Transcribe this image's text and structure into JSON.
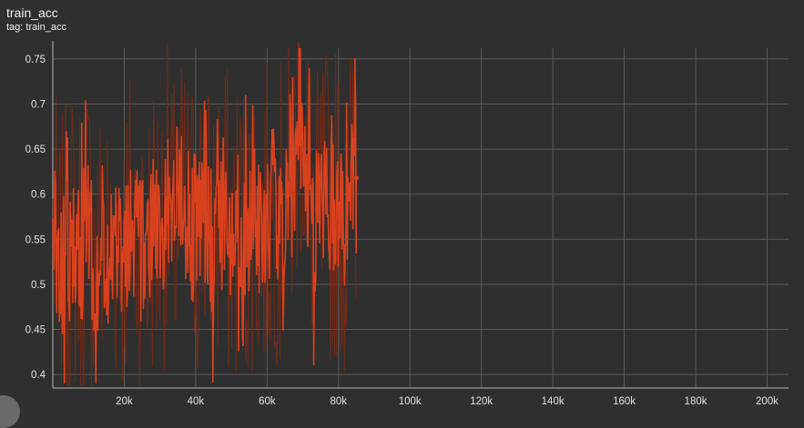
{
  "card": {
    "title": "train_acc",
    "subtitle": "tag: train_acc"
  },
  "colors": {
    "background": "#2f2f2f",
    "grid": "#5a5a5a",
    "axis": "#8a8a8a",
    "smoothed_line": "#d9411e",
    "raw_line": "#7a2a16"
  },
  "chart_data": {
    "type": "line",
    "title": "train_acc",
    "xlabel": "",
    "ylabel": "",
    "xlim": [
      0,
      206000
    ],
    "ylim": [
      0.385,
      0.77
    ],
    "grid": true,
    "x_ticks": [
      20000,
      40000,
      60000,
      80000,
      100000,
      120000,
      140000,
      160000,
      180000,
      200000
    ],
    "x_tick_labels": [
      "20k",
      "40k",
      "60k",
      "80k",
      "100k",
      "120k",
      "140k",
      "160k",
      "180k",
      "200k"
    ],
    "y_ticks": [
      0.4,
      0.45,
      0.5,
      0.55,
      0.6,
      0.65,
      0.7,
      0.75
    ],
    "y_tick_labels": [
      "0.4",
      "0.45",
      "0.5",
      "0.55",
      "0.6",
      "0.65",
      "0.7",
      "0.75"
    ],
    "series": [
      {
        "x": [
          0,
          2000,
          4000,
          6000,
          8000,
          10000,
          12000,
          14000,
          16000,
          18000,
          20000,
          22000,
          24000,
          26000,
          28000,
          30000,
          32000,
          34000,
          36000,
          38000,
          40000,
          42000,
          44000,
          46000,
          48000,
          50000,
          52000,
          54000,
          56000,
          58000,
          60000,
          62000,
          64000,
          66000,
          68000,
          69000,
          70000,
          72000,
          74000,
          76000,
          78000,
          80000,
          82000,
          84000,
          85000
        ],
        "y": [
          0.56,
          0.5,
          0.53,
          0.55,
          0.54,
          0.57,
          0.52,
          0.55,
          0.53,
          0.56,
          0.54,
          0.58,
          0.55,
          0.53,
          0.57,
          0.56,
          0.6,
          0.55,
          0.58,
          0.57,
          0.56,
          0.59,
          0.55,
          0.57,
          0.58,
          0.55,
          0.57,
          0.56,
          0.58,
          0.55,
          0.57,
          0.6,
          0.57,
          0.59,
          0.64,
          0.71,
          0.66,
          0.6,
          0.56,
          0.59,
          0.58,
          0.6,
          0.55,
          0.62,
          0.618
        ]
      }
    ]
  }
}
